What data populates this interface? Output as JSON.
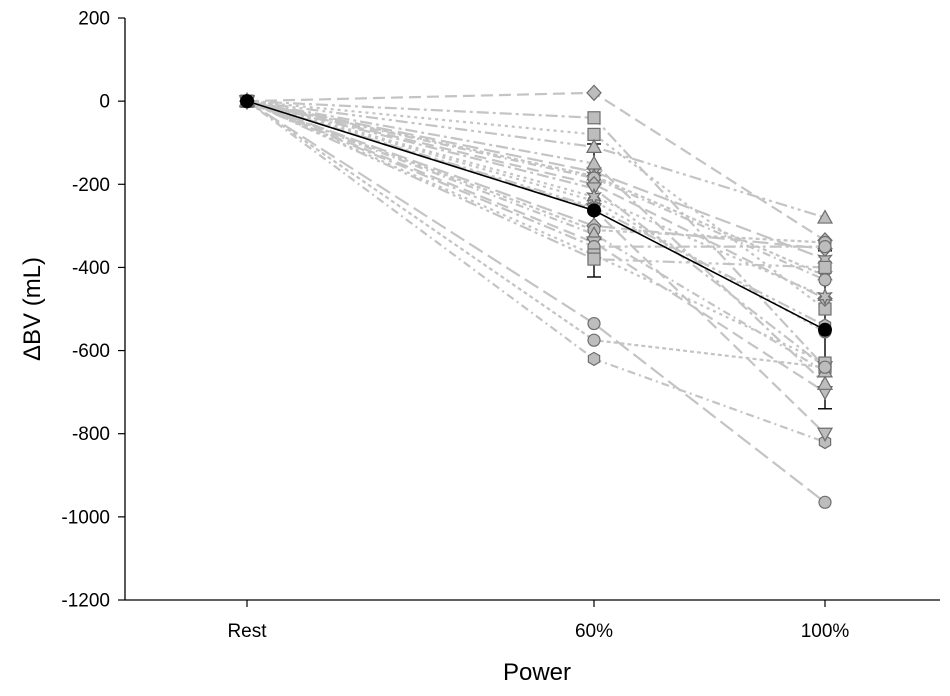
{
  "chart_data": {
    "type": "line",
    "title": "",
    "xlabel": "Power",
    "ylabel": "ΔBV (mL)",
    "categories": [
      "Rest",
      "60%",
      "100%"
    ],
    "ylim": [
      -1200,
      200
    ],
    "yticks": [
      200,
      0,
      -200,
      -400,
      -600,
      -800,
      -1000,
      -1200
    ],
    "grid": false,
    "legend": "none",
    "mean_series": {
      "values": [
        0,
        -263,
        -550
      ],
      "error": [
        0,
        160,
        190
      ],
      "color": "#000000"
    },
    "individual_series": [
      {
        "marker": "diamond",
        "values": [
          0,
          20,
          -335
        ]
      },
      {
        "marker": "square",
        "values": [
          0,
          -40,
          -640
        ]
      },
      {
        "marker": "square",
        "values": [
          0,
          -80,
          -500
        ]
      },
      {
        "marker": "triangle-up",
        "values": [
          0,
          -110,
          -280
        ]
      },
      {
        "marker": "star",
        "values": [
          0,
          -170,
          -380
        ]
      },
      {
        "marker": "star",
        "values": [
          0,
          -180,
          -420
        ]
      },
      {
        "marker": "circle",
        "values": [
          0,
          -185,
          -430
        ]
      },
      {
        "marker": "diamond",
        "values": [
          0,
          -200,
          -475
        ]
      },
      {
        "marker": "triangle-down",
        "values": [
          0,
          -210,
          -640
        ]
      },
      {
        "marker": "circle",
        "values": [
          0,
          -240,
          -555
        ]
      },
      {
        "marker": "hexagon",
        "values": [
          0,
          -255,
          -540
        ]
      },
      {
        "marker": "diamond",
        "values": [
          0,
          -300,
          -355
        ]
      },
      {
        "marker": "circle",
        "values": [
          0,
          -310,
          -340
        ]
      },
      {
        "marker": "triangle-up",
        "values": [
          0,
          -320,
          -650
        ]
      },
      {
        "marker": "triangle-down",
        "values": [
          0,
          -340,
          -700
        ]
      },
      {
        "marker": "circle",
        "values": [
          0,
          -350,
          -350
        ]
      },
      {
        "marker": "square",
        "values": [
          0,
          -370,
          -630
        ]
      },
      {
        "marker": "square",
        "values": [
          0,
          -380,
          -400
        ]
      },
      {
        "marker": "circle",
        "values": [
          0,
          -535,
          -965
        ]
      },
      {
        "marker": "circle",
        "values": [
          0,
          -575,
          -640
        ]
      },
      {
        "marker": "hexagon",
        "values": [
          0,
          -620,
          -820
        ]
      },
      {
        "marker": "triangle-down",
        "values": [
          0,
          -260,
          -800
        ]
      },
      {
        "marker": "triangle-up",
        "values": [
          0,
          -150,
          -680
        ]
      },
      {
        "marker": "star",
        "values": [
          0,
          -230,
          -470
        ]
      }
    ],
    "individual_color": "#c4c4c4",
    "marker_fill": "#bdbdbd",
    "marker_stroke": "#6e6e6e"
  }
}
